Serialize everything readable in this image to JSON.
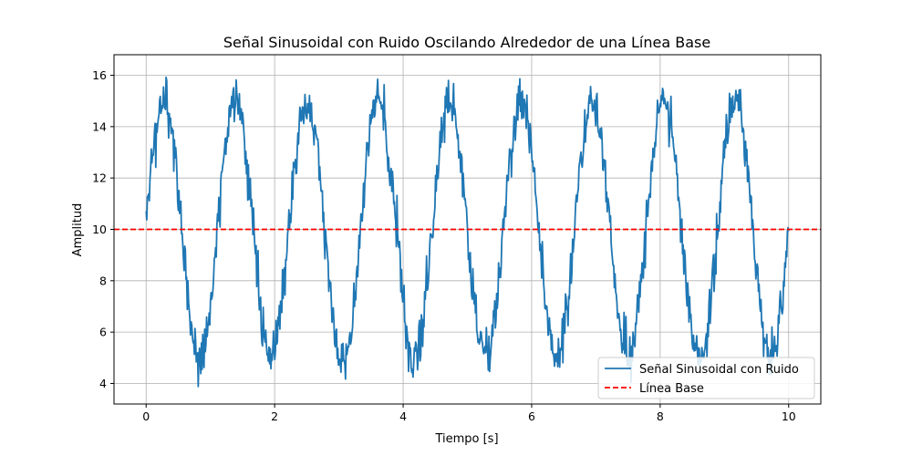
{
  "chart_data": {
    "type": "line",
    "title": "Señal Sinusoidal con Ruido Oscilando Alrededor de una Línea Base",
    "xlabel": "Tiempo [s]",
    "ylabel": "Amplitud",
    "xlim": [
      -0.5,
      10.5
    ],
    "ylim": [
      3.2,
      16.8
    ],
    "xticks": [
      0,
      2,
      4,
      6,
      8,
      10
    ],
    "yticks": [
      4,
      6,
      8,
      10,
      12,
      14,
      16
    ],
    "grid": true,
    "legend_position": "lower-right",
    "signal": {
      "x_range": [
        0,
        10
      ],
      "num_points": 1000,
      "offset": 10,
      "amplitude": 5,
      "frequency_hz": 0.9,
      "noise_std": 0.5
    },
    "series": [
      {
        "name": "Señal Sinusoidal con Ruido",
        "color": "#1f77b4",
        "style": "solid"
      },
      {
        "name": "Línea Base",
        "color": "#ff0000",
        "style": "dashed",
        "value": 10
      }
    ]
  }
}
